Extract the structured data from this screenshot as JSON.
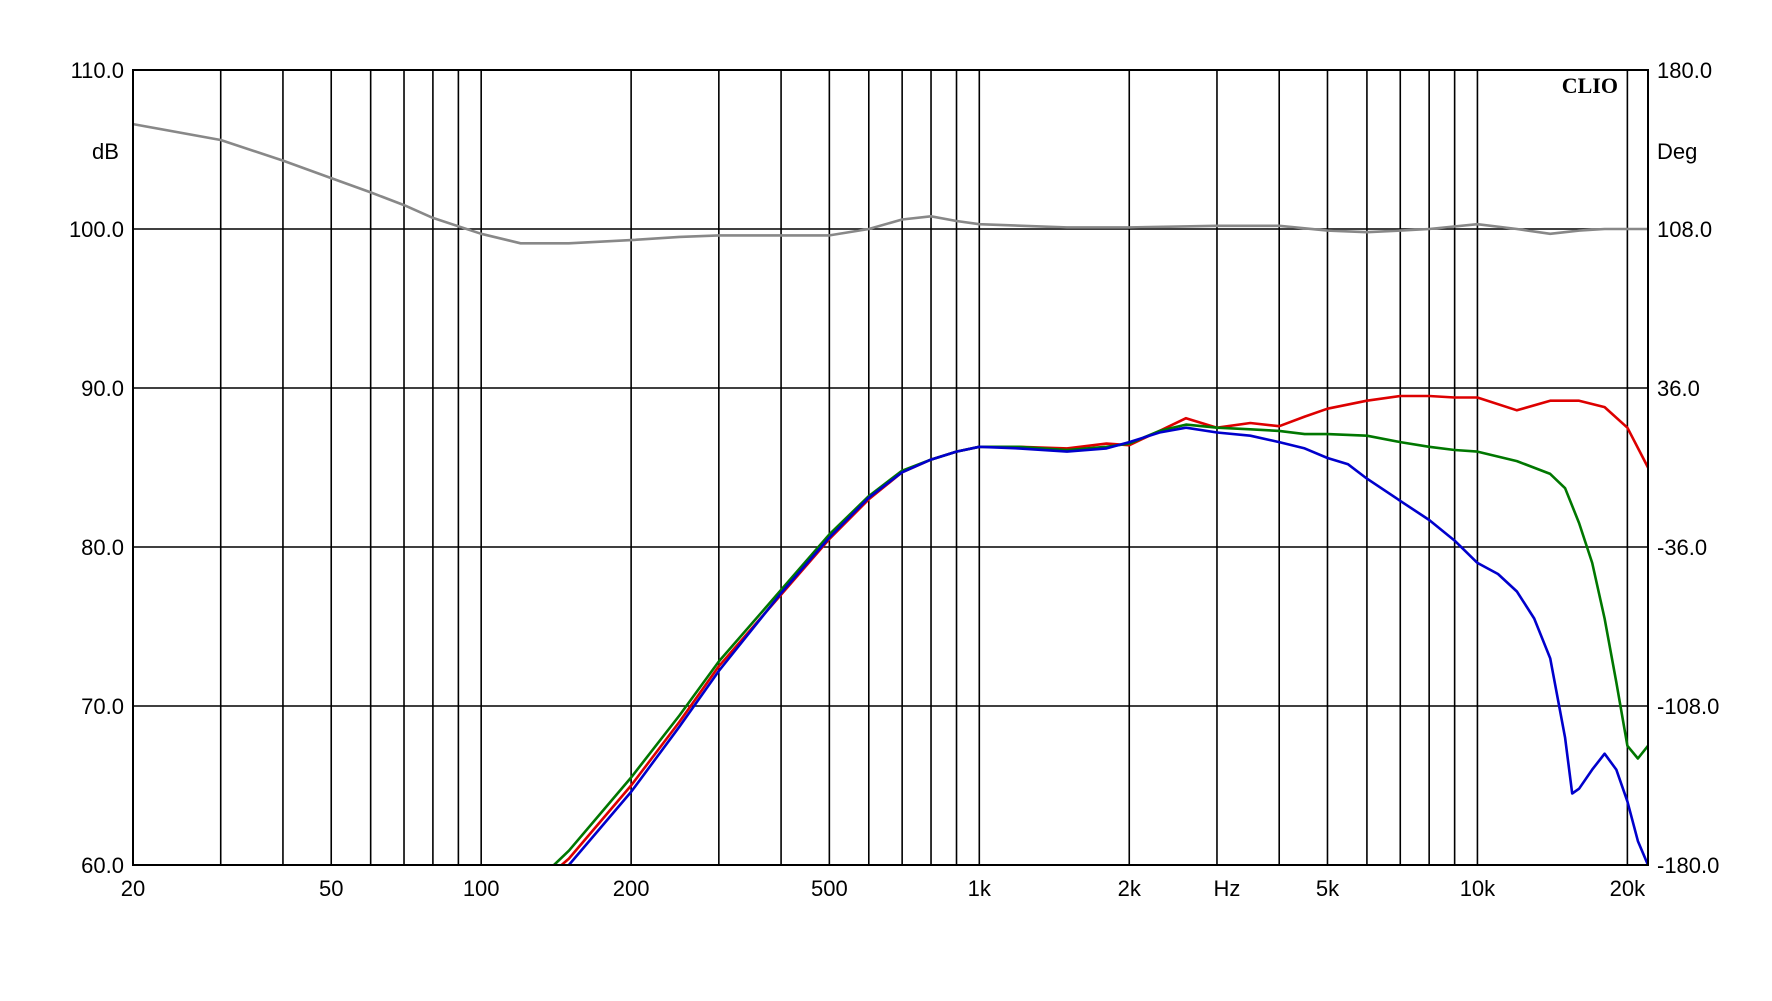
{
  "chart_data": {
    "type": "line",
    "brand": "CLIO",
    "x_scale": "log",
    "xlim": [
      20,
      22000
    ],
    "ylim": [
      60,
      110
    ],
    "y2lim": [
      -180,
      180
    ],
    "ylabel": "dB",
    "y2label": "Deg",
    "xlabel": "Hz",
    "grid": true,
    "x_tick_labels": [
      {
        "value": 20,
        "label": "20"
      },
      {
        "value": 50,
        "label": "50"
      },
      {
        "value": 100,
        "label": "100"
      },
      {
        "value": 200,
        "label": "200"
      },
      {
        "value": 500,
        "label": "500"
      },
      {
        "value": 1000,
        "label": "1k"
      },
      {
        "value": 2000,
        "label": "2k"
      },
      {
        "value": 5000,
        "label": "5k"
      },
      {
        "value": 10000,
        "label": "10k"
      },
      {
        "value": 20000,
        "label": "20k"
      }
    ],
    "x_grid_values": [
      30,
      40,
      50,
      60,
      70,
      80,
      90,
      100,
      200,
      300,
      400,
      500,
      600,
      700,
      800,
      900,
      1000,
      2000,
      3000,
      4000,
      5000,
      6000,
      7000,
      8000,
      9000,
      10000,
      20000
    ],
    "y_ticks": [
      {
        "value": 110,
        "label": "110.0"
      },
      {
        "value": 100,
        "label": "100.0"
      },
      {
        "value": 90,
        "label": "90.0"
      },
      {
        "value": 80,
        "label": "80.0"
      },
      {
        "value": 70,
        "label": "70.0"
      },
      {
        "value": 60,
        "label": "60.0"
      }
    ],
    "y2_ticks": [
      {
        "value": 180,
        "label": "180.0"
      },
      {
        "value": 108,
        "label": "108.0"
      },
      {
        "value": 36,
        "label": "36.0"
      },
      {
        "value": -36,
        "label": "-36.0"
      },
      {
        "value": -108,
        "label": "-108.0"
      },
      {
        "value": -180,
        "label": "-180.0"
      }
    ],
    "series": [
      {
        "color": "#888888",
        "x": [
          20,
          30,
          40,
          50,
          60,
          70,
          80,
          100,
          120,
          150,
          200,
          250,
          300,
          400,
          500,
          600,
          700,
          800,
          900,
          1000,
          1500,
          2000,
          3000,
          4000,
          5000,
          6000,
          7000,
          8000,
          10000,
          12000,
          14000,
          16000,
          18000,
          20000,
          22000
        ],
        "y": [
          106.6,
          105.6,
          104.3,
          103.2,
          102.3,
          101.5,
          100.7,
          99.7,
          99.1,
          99.1,
          99.3,
          99.5,
          99.6,
          99.6,
          99.6,
          100.0,
          100.6,
          100.8,
          100.5,
          100.3,
          100.1,
          100.1,
          100.2,
          100.2,
          99.9,
          99.8,
          99.9,
          100.0,
          100.3,
          100.0,
          99.7,
          99.9,
          100.0,
          100.0,
          100.0
        ]
      },
      {
        "color": "#dd0000",
        "x": [
          145,
          150,
          200,
          250,
          300,
          400,
          500,
          600,
          700,
          800,
          900,
          1000,
          1200,
          1500,
          1800,
          2000,
          2300,
          2600,
          3000,
          3500,
          4000,
          4500,
          5000,
          6000,
          7000,
          8000,
          9000,
          10000,
          12000,
          14000,
          16000,
          18000,
          20000,
          22000
        ],
        "y": [
          60,
          60.4,
          65.0,
          69.0,
          72.5,
          77.0,
          80.5,
          83.0,
          84.7,
          85.5,
          86.0,
          86.3,
          86.3,
          86.2,
          86.5,
          86.4,
          87.3,
          88.1,
          87.5,
          87.8,
          87.6,
          88.2,
          88.7,
          89.2,
          89.5,
          89.5,
          89.4,
          89.4,
          88.6,
          89.2,
          89.2,
          88.8,
          87.5,
          85.0
        ]
      },
      {
        "color": "#007700",
        "x": [
          140,
          150,
          200,
          250,
          300,
          400,
          500,
          600,
          700,
          800,
          900,
          1000,
          1200,
          1500,
          1800,
          2000,
          2300,
          2600,
          3000,
          3500,
          4000,
          4500,
          5000,
          6000,
          7000,
          8000,
          9000,
          10000,
          12000,
          14000,
          15000,
          16000,
          17000,
          18000,
          19000,
          20000,
          21000,
          22000
        ],
        "y": [
          60,
          60.9,
          65.5,
          69.4,
          72.8,
          77.3,
          80.8,
          83.2,
          84.8,
          85.5,
          86.0,
          86.3,
          86.3,
          86.1,
          86.3,
          86.5,
          87.3,
          87.7,
          87.5,
          87.4,
          87.3,
          87.1,
          87.1,
          87.0,
          86.6,
          86.3,
          86.1,
          86.0,
          85.4,
          84.6,
          83.7,
          81.5,
          79.0,
          75.5,
          71.5,
          67.5,
          66.7,
          67.5
        ]
      },
      {
        "color": "#0000cc",
        "x": [
          150,
          200,
          250,
          300,
          400,
          500,
          600,
          700,
          800,
          900,
          1000,
          1200,
          1500,
          1800,
          2000,
          2300,
          2600,
          3000,
          3500,
          4000,
          4500,
          5000,
          5500,
          6000,
          7000,
          8000,
          9000,
          10000,
          11000,
          12000,
          13000,
          14000,
          15000,
          15500,
          16000,
          17000,
          18000,
          19000,
          20000,
          21000,
          22000
        ],
        "y": [
          60,
          64.6,
          68.7,
          72.2,
          77.1,
          80.6,
          83.1,
          84.7,
          85.5,
          86.0,
          86.3,
          86.2,
          86.0,
          86.2,
          86.6,
          87.2,
          87.5,
          87.2,
          87.0,
          86.6,
          86.2,
          85.6,
          85.2,
          84.3,
          82.9,
          81.7,
          80.4,
          79.0,
          78.3,
          77.2,
          75.5,
          73.0,
          68.0,
          64.5,
          64.8,
          66.0,
          67.0,
          66.0,
          64.0,
          61.5,
          60.0
        ]
      }
    ]
  }
}
